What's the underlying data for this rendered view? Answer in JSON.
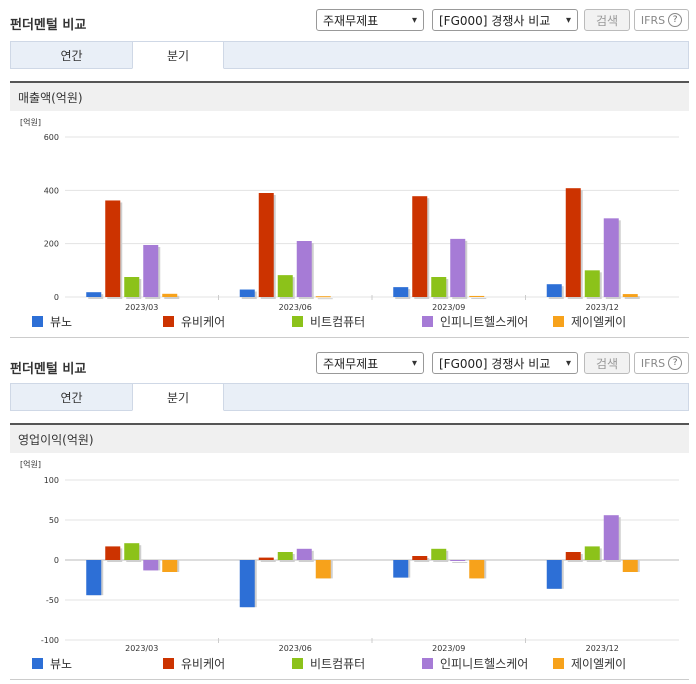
{
  "sections": [
    {
      "title": "펀더멘털 비교",
      "select1": "주재무제표",
      "select2": "[FG000] 경쟁사 비교",
      "search_label": "검색",
      "ifrs_label": "IFRS",
      "tabs": [
        {
          "label": "연간"
        },
        {
          "label": "분기"
        }
      ],
      "active_tab": 1,
      "chart_title": "매출액(억원)"
    },
    {
      "title": "펀더멘털 비교",
      "select1": "주재무제표",
      "select2": "[FG000] 경쟁사 비교",
      "search_label": "검색",
      "ifrs_label": "IFRS",
      "tabs": [
        {
          "label": "연간"
        },
        {
          "label": "분기"
        }
      ],
      "active_tab": 1,
      "chart_title": "영업이익(억원)"
    }
  ],
  "colors": [
    "#2d6fd6",
    "#cc3300",
    "#8cc21a",
    "#a67bd6",
    "#f7a21b"
  ],
  "chart_data": [
    {
      "type": "bar",
      "title": "매출액(억원)",
      "unit_label": "[억원]",
      "categories": [
        "2023/03",
        "2023/06",
        "2023/09",
        "2023/12"
      ],
      "ylim": [
        0,
        600
      ],
      "yticks": [
        0,
        200,
        400,
        600
      ],
      "series": [
        {
          "name": "뷰노",
          "values": [
            18,
            28,
            37,
            48
          ]
        },
        {
          "name": "유비케어",
          "values": [
            362,
            390,
            378,
            408
          ]
        },
        {
          "name": "비트컴퓨터",
          "values": [
            75,
            82,
            75,
            100
          ]
        },
        {
          "name": "인피니트헬스케어",
          "values": [
            195,
            210,
            218,
            295
          ]
        },
        {
          "name": "제이엘케이",
          "values": [
            12,
            3,
            4,
            11
          ]
        }
      ]
    },
    {
      "type": "bar",
      "title": "영업이익(억원)",
      "unit_label": "[억원]",
      "categories": [
        "2023/03",
        "2023/06",
        "2023/09",
        "2023/12"
      ],
      "ylim": [
        -100,
        100
      ],
      "yticks": [
        -100,
        -50,
        0,
        50,
        100
      ],
      "series": [
        {
          "name": "뷰노",
          "values": [
            -44,
            -59,
            -22,
            -36
          ]
        },
        {
          "name": "유비케어",
          "values": [
            17,
            3,
            5,
            10
          ]
        },
        {
          "name": "비트컴퓨터",
          "values": [
            21,
            10,
            14,
            17
          ]
        },
        {
          "name": "인피니트헬스케어",
          "values": [
            -13,
            14,
            0,
            56
          ]
        },
        {
          "name": "제이엘케이",
          "values": [
            -15,
            -23,
            -23,
            -15
          ]
        }
      ]
    }
  ]
}
